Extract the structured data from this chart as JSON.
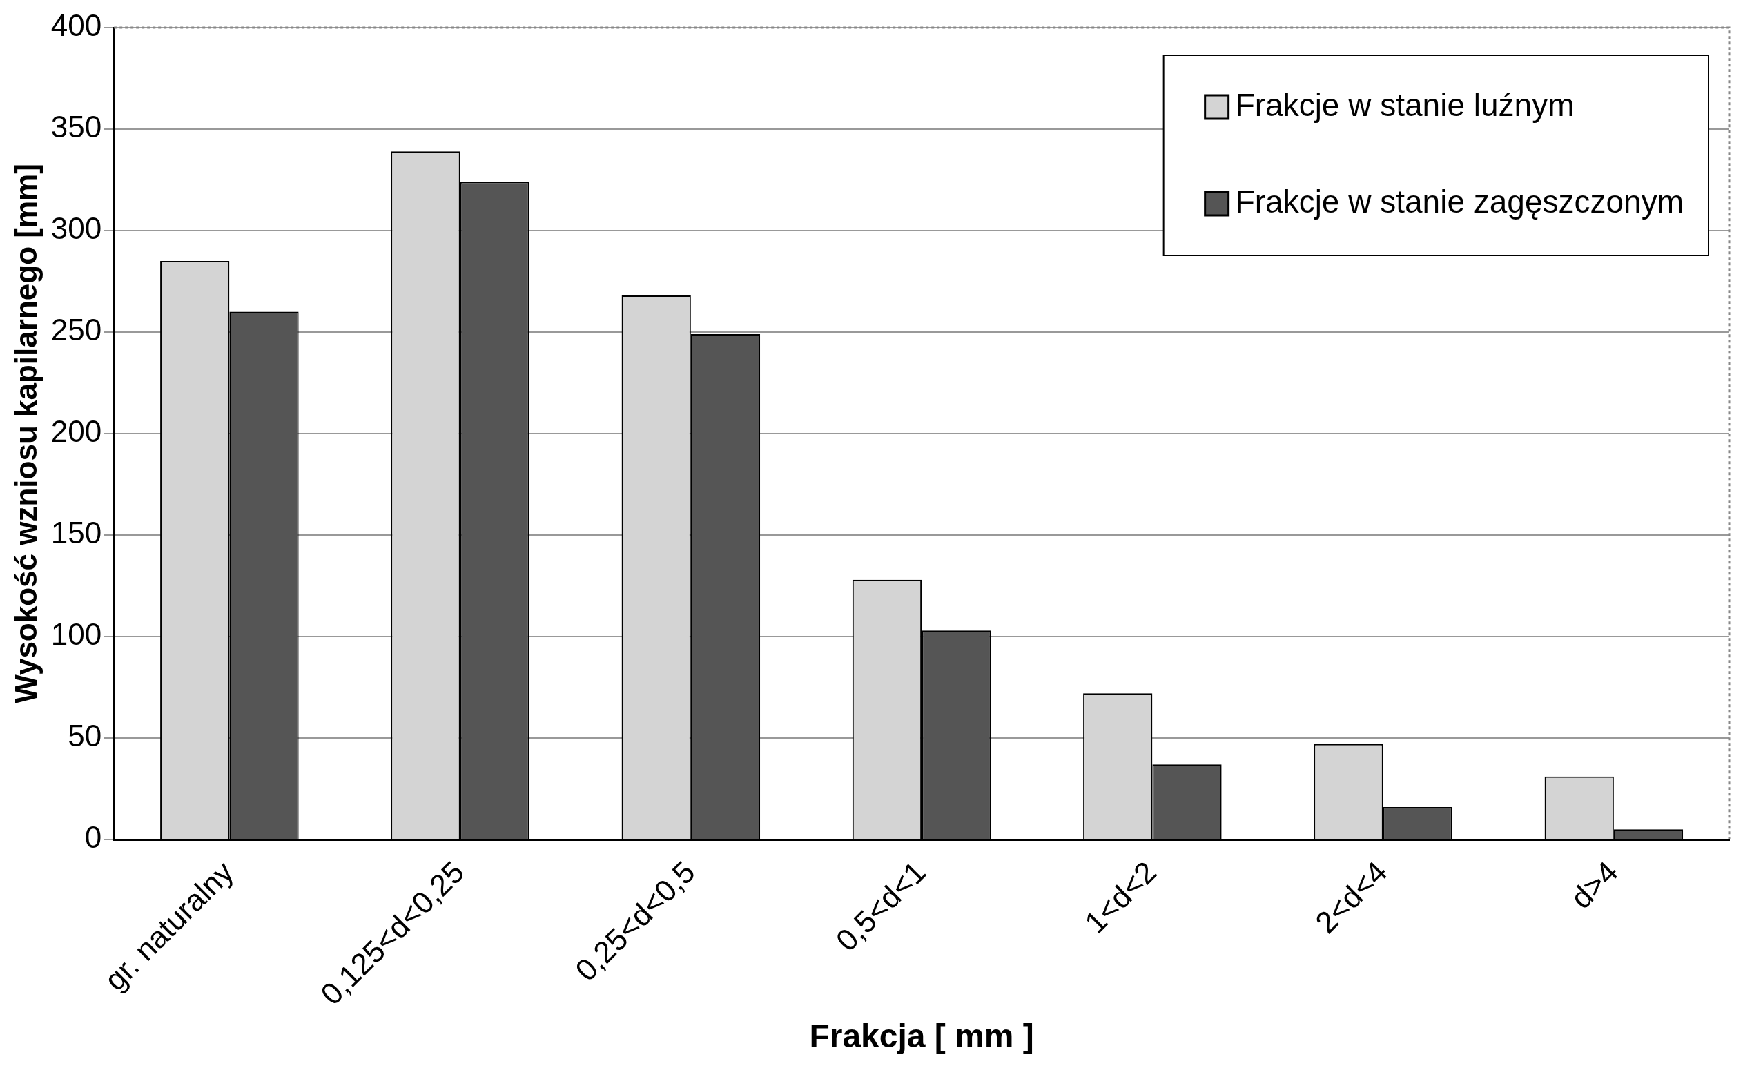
{
  "chart_data": {
    "type": "bar",
    "xlabel": "Frakcja [ mm ]",
    "ylabel": "Wysokość wzniosu kapilarnego [mm]",
    "categories": [
      "gr. naturalny",
      "0,125<d<0,25",
      "0,25<d<0,5",
      "0,5<d<1",
      "1<d<2",
      "2<d<4",
      "d>4"
    ],
    "series": [
      {
        "name": "Frakcje w stanie luźnym",
        "color": "#d4d4d4",
        "values": [
          285,
          339,
          268,
          128,
          72,
          47,
          31
        ]
      },
      {
        "name": "Frakcje w stanie zagęszczonym",
        "color": "#555555",
        "values": [
          260,
          324,
          249,
          103,
          37,
          16,
          5
        ]
      }
    ],
    "ylim": [
      0,
      400
    ],
    "yticks": [
      0,
      50,
      100,
      150,
      200,
      250,
      300,
      350,
      400
    ],
    "grid": "y",
    "legend": "top right"
  }
}
